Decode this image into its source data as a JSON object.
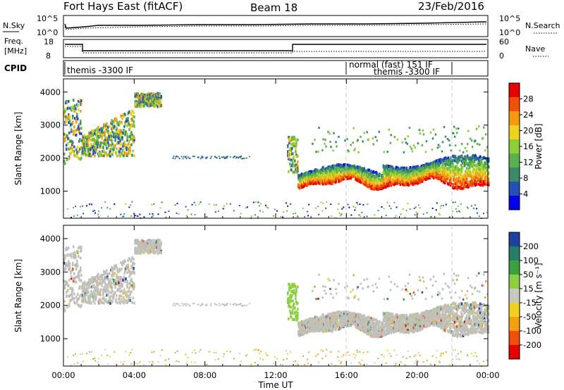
{
  "header": {
    "title_left": "Fort Hays East (fitACF)",
    "title_center": "Beam 18",
    "title_right": "23/Feb/2016"
  },
  "top_panels": {
    "nsky_label": "N.Sky",
    "nsky_ticks_left": [
      "10^5",
      "10^0"
    ],
    "nsky_ticks_right": [
      "10^5",
      "10^0"
    ],
    "nsearch_label": "N.Search",
    "freq_label_line1": "Freq.",
    "freq_label_line2": "[MHz]",
    "freq_ticks_left": [
      "18",
      "8"
    ],
    "nave_ticks_right": [
      "60",
      "0"
    ],
    "nave_label": "Nave",
    "cpid_label": "CPID",
    "cpid_segments": [
      {
        "label": "themis -3300 IF",
        "start_hour": 0.0
      },
      {
        "label": "normal (fast) 151 IF",
        "start_hour": 16.0
      },
      {
        "label": "themis -3300 IF",
        "start_hour": 16.0,
        "end_hour": 22.0
      }
    ]
  },
  "chart_data": [
    {
      "type": "heatmap",
      "panel": "power",
      "ylabel": "Slant Range [km]",
      "xlabel": "Time UT",
      "ylim": [
        180,
        4400
      ],
      "yticks": [
        1000,
        2000,
        3000,
        4000
      ],
      "xlim": [
        0,
        24
      ],
      "xtick_labels": [
        "00:00",
        "04:00",
        "08:00",
        "12:00",
        "16:00",
        "20:00",
        "00:00"
      ],
      "colorbar": {
        "label": "Power [dB]",
        "tick_labels": [
          "4",
          "8",
          "12",
          "16",
          "20",
          "24",
          "28"
        ],
        "range": [
          0,
          30
        ],
        "colors": [
          "#0000ee",
          "#2450b8",
          "#3a8a6a",
          "#5ab04a",
          "#8ccf38",
          "#f0d020",
          "#f59a10",
          "#f05008",
          "#e60000"
        ]
      },
      "features": [
        {
          "desc_hours": [
            0.0,
            1.0
          ],
          "range_km": [
            1800,
            3900
          ]
        },
        {
          "desc_hours": [
            1.0,
            4.0
          ],
          "range_km": [
            2100,
            3600
          ]
        },
        {
          "desc_hours": [
            13.0,
            24.0
          ],
          "range_km": [
            1100,
            3000
          ]
        }
      ]
    },
    {
      "type": "heatmap",
      "panel": "velocity",
      "ylabel": "Slant Range [km]",
      "xlabel": "Time UT",
      "ylim": [
        180,
        4400
      ],
      "yticks": [
        1000,
        2000,
        3000,
        4000
      ],
      "xlim": [
        0,
        24
      ],
      "xtick_labels": [
        "00:00",
        "04:00",
        "08:00",
        "12:00",
        "16:00",
        "20:00",
        "00:00"
      ],
      "colorbar": {
        "label": "Velocity [m s⁻¹]",
        "tick_labels": [
          "200",
          "100",
          "50",
          "15",
          "-15",
          "-50",
          "-100",
          "-200"
        ],
        "colors": [
          "#2040a0",
          "#2a7a6a",
          "#3aa040",
          "#8ad040",
          "#c8c8c0",
          "#f0d020",
          "#f5a010",
          "#f05008",
          "#e60000"
        ]
      }
    }
  ],
  "colors": {
    "ground_scatter": "#c0c0b8",
    "frame": "#000000",
    "dashed_marker": "#c8c8c8"
  }
}
